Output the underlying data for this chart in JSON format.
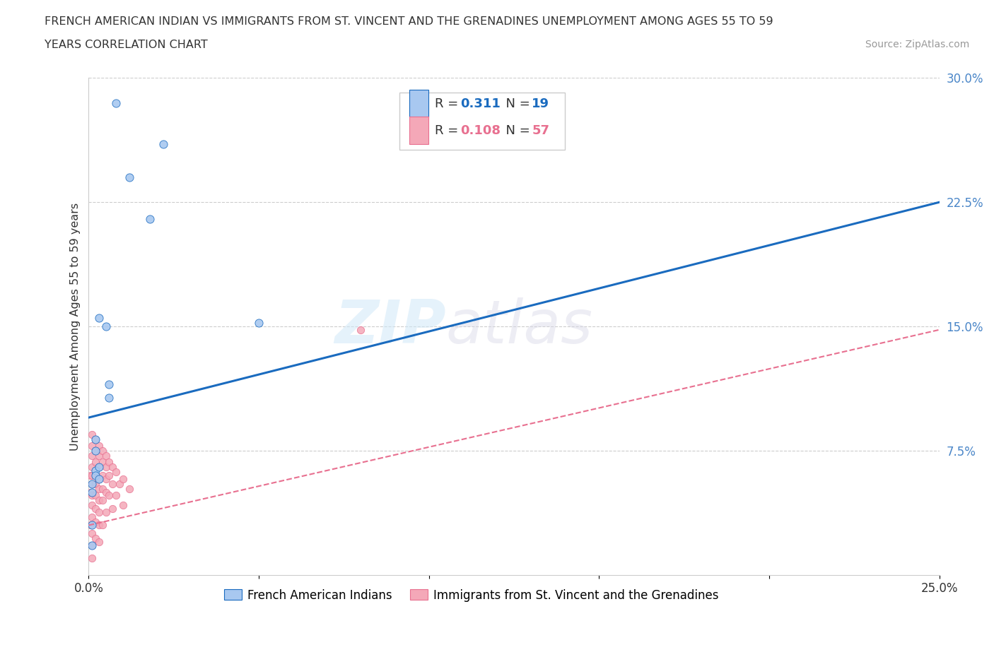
{
  "title_line1": "FRENCH AMERICAN INDIAN VS IMMIGRANTS FROM ST. VINCENT AND THE GRENADINES UNEMPLOYMENT AMONG AGES 55 TO 59",
  "title_line2": "YEARS CORRELATION CHART",
  "source_text": "Source: ZipAtlas.com",
  "ylabel": "Unemployment Among Ages 55 to 59 years",
  "xlim": [
    0.0,
    0.25
  ],
  "ylim": [
    0.0,
    0.3
  ],
  "xticks": [
    0.0,
    0.05,
    0.1,
    0.15,
    0.2,
    0.25
  ],
  "xticklabels": [
    "0.0%",
    "",
    "",
    "",
    "",
    "25.0%"
  ],
  "yticks_right": [
    0.0,
    0.075,
    0.15,
    0.225,
    0.3
  ],
  "ytick_right_labels": [
    "",
    "7.5%",
    "15.0%",
    "22.5%",
    "30.0%"
  ],
  "blue_R": 0.311,
  "blue_N": 19,
  "pink_R": 0.108,
  "pink_N": 57,
  "blue_scatter_x": [
    0.008,
    0.012,
    0.018,
    0.022,
    0.003,
    0.005,
    0.006,
    0.006,
    0.002,
    0.002,
    0.002,
    0.002,
    0.003,
    0.003,
    0.001,
    0.001,
    0.001,
    0.05,
    0.001
  ],
  "blue_scatter_y": [
    0.285,
    0.24,
    0.215,
    0.26,
    0.155,
    0.15,
    0.115,
    0.107,
    0.082,
    0.075,
    0.063,
    0.06,
    0.065,
    0.058,
    0.055,
    0.05,
    0.03,
    0.152,
    0.018
  ],
  "pink_scatter_x": [
    0.0005,
    0.0005,
    0.0005,
    0.001,
    0.001,
    0.001,
    0.001,
    0.001,
    0.001,
    0.001,
    0.001,
    0.001,
    0.001,
    0.001,
    0.001,
    0.002,
    0.002,
    0.002,
    0.002,
    0.002,
    0.002,
    0.002,
    0.002,
    0.002,
    0.003,
    0.003,
    0.003,
    0.003,
    0.003,
    0.003,
    0.003,
    0.003,
    0.003,
    0.004,
    0.004,
    0.004,
    0.004,
    0.004,
    0.004,
    0.005,
    0.005,
    0.005,
    0.005,
    0.005,
    0.006,
    0.006,
    0.006,
    0.007,
    0.007,
    0.007,
    0.008,
    0.008,
    0.009,
    0.01,
    0.01,
    0.012,
    0.08
  ],
  "pink_scatter_y": [
    0.06,
    0.05,
    0.03,
    0.085,
    0.078,
    0.072,
    0.065,
    0.06,
    0.055,
    0.048,
    0.042,
    0.035,
    0.025,
    0.018,
    0.01,
    0.082,
    0.075,
    0.068,
    0.06,
    0.055,
    0.048,
    0.04,
    0.032,
    0.022,
    0.078,
    0.072,
    0.065,
    0.058,
    0.052,
    0.045,
    0.038,
    0.03,
    0.02,
    0.075,
    0.068,
    0.06,
    0.052,
    0.045,
    0.03,
    0.072,
    0.065,
    0.058,
    0.05,
    0.038,
    0.068,
    0.06,
    0.048,
    0.065,
    0.055,
    0.04,
    0.062,
    0.048,
    0.055,
    0.058,
    0.042,
    0.052,
    0.148
  ],
  "blue_line_x": [
    0.0,
    0.25
  ],
  "blue_line_y": [
    0.095,
    0.225
  ],
  "pink_line_x": [
    0.0,
    0.25
  ],
  "pink_line_y": [
    0.03,
    0.148
  ],
  "blue_color": "#a8c8f0",
  "pink_color": "#f4a8b8",
  "blue_line_color": "#1a6bbf",
  "pink_line_color": "#e87090",
  "watermark_zip": "ZIP",
  "watermark_atlas": "atlas",
  "legend_label_blue": "French American Indians",
  "legend_label_pink": "Immigrants from St. Vincent and the Grenadines",
  "background_color": "#ffffff",
  "grid_color": "#cccccc"
}
